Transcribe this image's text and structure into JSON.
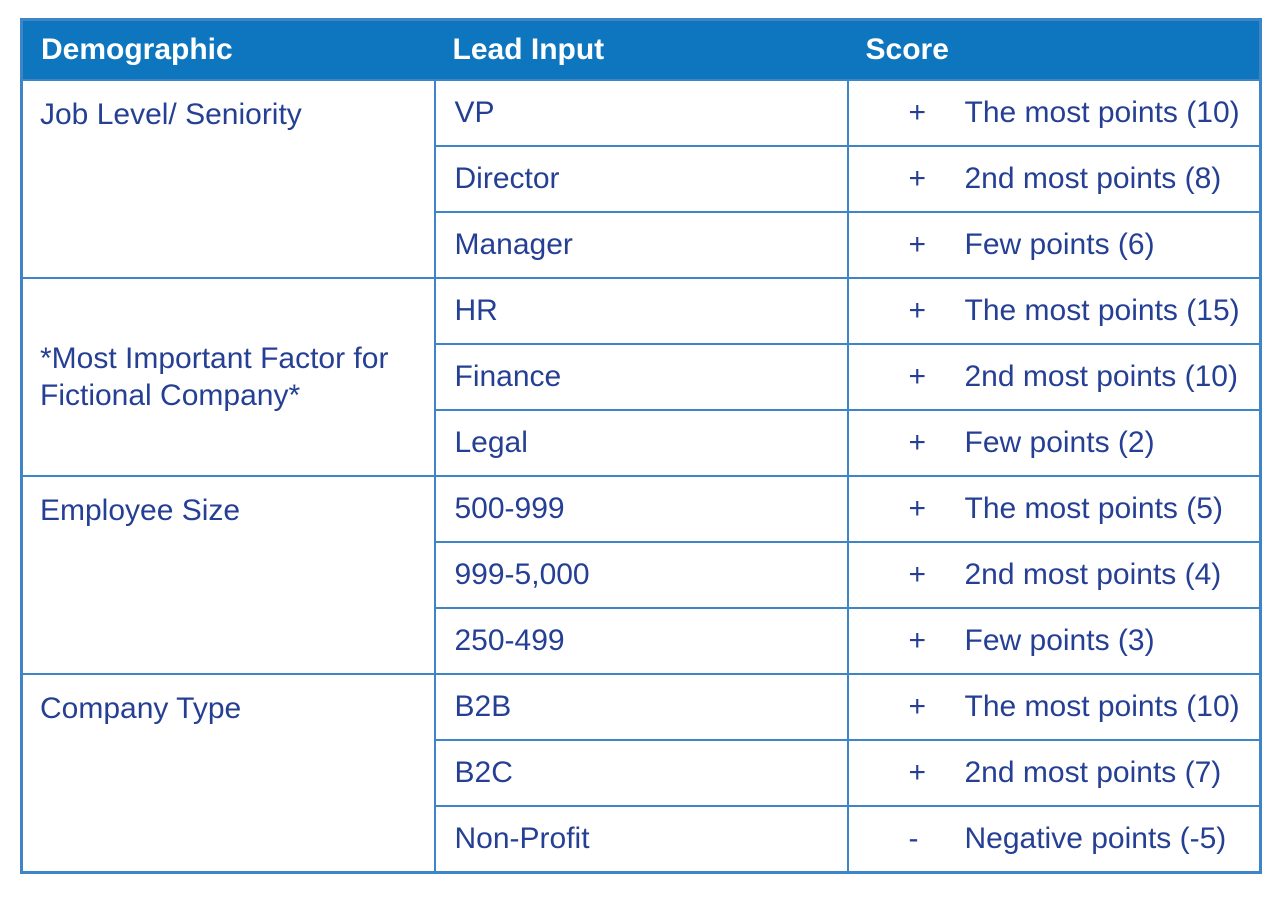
{
  "table": {
    "columns": [
      {
        "label": "Demographic"
      },
      {
        "label": "Lead Input"
      },
      {
        "label": "Score"
      }
    ],
    "groups": [
      {
        "demographic": "Job Level/ Seniority",
        "label_valign": "top",
        "rows": [
          {
            "lead_input": "VP",
            "sign": "+",
            "score": "The most points (10)"
          },
          {
            "lead_input": "Director",
            "sign": "+",
            "score": "2nd most points (8)"
          },
          {
            "lead_input": "Manager",
            "sign": "+",
            "score": "Few points (6)"
          }
        ]
      },
      {
        "demographic": "*Most Important Factor for Fictional Company*",
        "label_valign": "middle",
        "rows": [
          {
            "lead_input": "HR",
            "sign": "+",
            "score": "The most points (15)"
          },
          {
            "lead_input": "Finance",
            "sign": "+",
            "score": "2nd most points (10)"
          },
          {
            "lead_input": "Legal",
            "sign": "+",
            "score": "Few points (2)"
          }
        ]
      },
      {
        "demographic": "Employee Size",
        "label_valign": "top",
        "rows": [
          {
            "lead_input": "500-999",
            "sign": "+",
            "score": "The most points (5)"
          },
          {
            "lead_input": "999-5,000",
            "sign": "+",
            "score": "2nd most points (4)"
          },
          {
            "lead_input": "250-499",
            "sign": "+",
            "score": "Few points (3)"
          }
        ]
      },
      {
        "demographic": "Company Type",
        "label_valign": "top",
        "rows": [
          {
            "lead_input": "B2B",
            "sign": "+",
            "score": "The most points (10)"
          },
          {
            "lead_input": "B2C",
            "sign": "+",
            "score": "2nd most points (7)"
          },
          {
            "lead_input": "Non-Profit",
            "sign": "-",
            "score": "Negative points (-5)"
          }
        ]
      }
    ]
  },
  "colors": {
    "header_bg": "#0e76be",
    "header_text": "#ffffff",
    "body_text": "#253f94",
    "border": "#3d85c6"
  }
}
